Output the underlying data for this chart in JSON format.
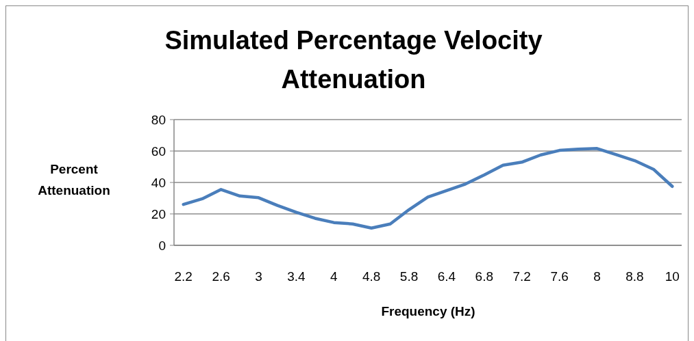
{
  "chart_data": {
    "type": "line",
    "title": "Simulated Percentage Velocity Attenuation",
    "xlabel": "Frequency (Hz)",
    "ylabel": "Percent Attenuation",
    "categories": [
      "2.2",
      null,
      "2.6",
      null,
      "3",
      null,
      "3.4",
      null,
      "4",
      null,
      "4.8",
      null,
      "5.8",
      null,
      "6.4",
      null,
      "6.8",
      null,
      "7.2",
      null,
      "7.6",
      null,
      "8",
      null,
      "8.8",
      null,
      "10"
    ],
    "series": [
      {
        "color": "#4a7ebb",
        "values": [
          26,
          29.6,
          35.5,
          31.4,
          30.3,
          25.4,
          21,
          17.2,
          14.5,
          13.6,
          11,
          13.6,
          22.7,
          30.7,
          34.8,
          39,
          44.8,
          51,
          52.9,
          57.5,
          60.4,
          61.2,
          61.6,
          57.8,
          53.9,
          48.4,
          37.5
        ]
      }
    ],
    "ylim": [
      0,
      80
    ],
    "yticks": [
      0,
      20,
      40,
      60,
      80
    ],
    "grid": "y",
    "marker": "none",
    "line_style": "solid"
  }
}
